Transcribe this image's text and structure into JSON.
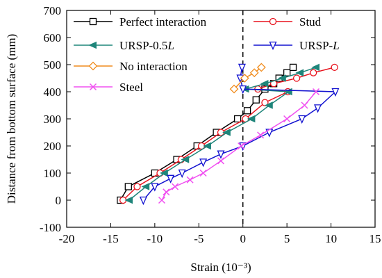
{
  "chart_data": {
    "type": "line",
    "title": "",
    "xlabel": "Strain (10⁻³)",
    "ylabel": "Distance from bottom surface (mm)",
    "xlim": [
      -20,
      15
    ],
    "ylim": [
      -100,
      700
    ],
    "xticks": [
      -20,
      -15,
      -10,
      -5,
      0,
      5,
      10,
      15
    ],
    "yticks": [
      -100,
      0,
      100,
      200,
      300,
      400,
      500,
      600,
      700
    ],
    "grid": false,
    "legend_position": "top",
    "reference_line": {
      "x": 0,
      "style": "dashed"
    },
    "series": [
      {
        "name": "Perfect interaction",
        "color": "#000000",
        "marker": "square",
        "points": [
          [
            -13.9,
            0
          ],
          [
            -13.0,
            50
          ],
          [
            -10.0,
            100
          ],
          [
            -7.5,
            150
          ],
          [
            -5.2,
            200
          ],
          [
            -3.0,
            250
          ],
          [
            -0.6,
            300
          ],
          [
            0.5,
            330
          ],
          [
            1.5,
            370
          ],
          [
            2.5,
            410
          ],
          [
            3.5,
            430
          ],
          [
            4.1,
            450
          ],
          [
            5.0,
            470
          ],
          [
            5.7,
            490
          ]
        ]
      },
      {
        "name": "Stud",
        "color": "#e8141e",
        "marker": "circle",
        "points": [
          [
            -13.6,
            0
          ],
          [
            -12.0,
            50
          ],
          [
            -9.4,
            100
          ],
          [
            -7.0,
            150
          ],
          [
            -4.7,
            200
          ],
          [
            -2.5,
            250
          ],
          [
            0.3,
            300
          ],
          [
            2.5,
            360
          ],
          [
            5.1,
            400
          ],
          [
            1.7,
            410
          ],
          [
            3.5,
            430
          ],
          [
            6.1,
            450
          ],
          [
            8.0,
            470
          ],
          [
            10.4,
            490
          ]
        ]
      },
      {
        "name": "URSP-0.5L",
        "color": "#1f857a",
        "marker": "triangle-left",
        "points": [
          [
            -12.9,
            0
          ],
          [
            -11.0,
            50
          ],
          [
            -8.9,
            100
          ],
          [
            -6.5,
            150
          ],
          [
            -4.0,
            200
          ],
          [
            -1.8,
            250
          ],
          [
            1.0,
            300
          ],
          [
            3.0,
            350
          ],
          [
            5.2,
            400
          ],
          [
            0.3,
            410
          ],
          [
            2.5,
            430
          ],
          [
            4.5,
            450
          ],
          [
            6.5,
            470
          ],
          [
            8.3,
            490
          ]
        ]
      },
      {
        "name": "URSP-L",
        "color": "#1212d0",
        "marker": "triangle-down",
        "points": [
          [
            -11.3,
            0
          ],
          [
            -10.0,
            50
          ],
          [
            -8.2,
            80
          ],
          [
            -6.9,
            100
          ],
          [
            -4.5,
            140
          ],
          [
            -2.5,
            170
          ],
          [
            0.0,
            200
          ],
          [
            3.0,
            250
          ],
          [
            6.7,
            300
          ],
          [
            8.5,
            340
          ],
          [
            10.5,
            400
          ],
          [
            0.0,
            410
          ],
          [
            -0.3,
            450
          ],
          [
            -0.1,
            490
          ]
        ]
      },
      {
        "name": "No interaction",
        "color": "#f08c1e",
        "marker": "diamond",
        "points": [
          [
            -1.0,
            410
          ],
          [
            0.2,
            450
          ],
          [
            1.3,
            470
          ],
          [
            2.1,
            490
          ]
        ]
      },
      {
        "name": "Steel",
        "color": "#f050f0",
        "marker": "x",
        "points": [
          [
            -9.2,
            0
          ],
          [
            -8.7,
            30
          ],
          [
            -7.7,
            50
          ],
          [
            -6.0,
            75
          ],
          [
            -4.5,
            100
          ],
          [
            -2.5,
            145
          ],
          [
            -0.2,
            200
          ],
          [
            2.0,
            240
          ],
          [
            5.0,
            300
          ],
          [
            7.0,
            350
          ],
          [
            8.3,
            400
          ]
        ]
      }
    ]
  }
}
